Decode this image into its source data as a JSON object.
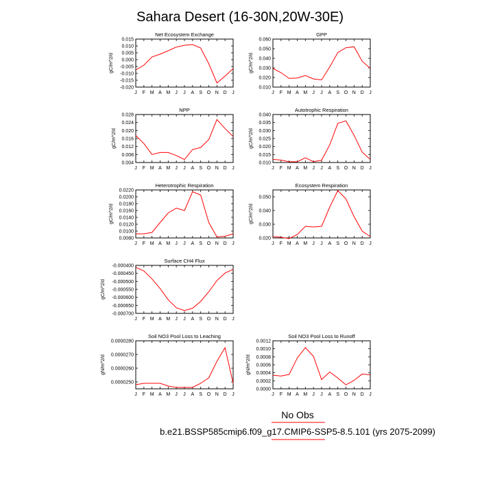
{
  "page": {
    "title": "Sahara Desert (16-30N,20W-30E)",
    "legend_label": "No Obs",
    "footer": "b.e21.BSSP585cmip6.f09_g17.CMIP6-SSP5-8.5.101 (yrs 2075-2099)",
    "line_color": "#ff0000"
  },
  "chart_data": [
    {
      "type": "line",
      "title": "Net Ecosystem Exchange",
      "ylabel": "gC/m^2/d",
      "categories": [
        "J",
        "F",
        "M",
        "A",
        "M",
        "J",
        "J",
        "A",
        "S",
        "O",
        "N",
        "D",
        "J"
      ],
      "values": [
        -0.0075,
        -0.004,
        0.002,
        0.004,
        0.0065,
        0.0092,
        0.0105,
        0.011,
        0.0085,
        -0.003,
        -0.017,
        -0.012,
        -0.0065
      ],
      "ylim": [
        -0.02,
        0.015
      ],
      "yticks": [
        "-0.020",
        "-0.015",
        "-0.010",
        "-0.005",
        "0.000",
        "0.005",
        "0.010",
        "0.015"
      ]
    },
    {
      "type": "line",
      "title": "GPP",
      "ylabel": "gC/m^2/d",
      "categories": [
        "J",
        "F",
        "M",
        "A",
        "M",
        "J",
        "J",
        "A",
        "S",
        "O",
        "N",
        "D",
        "J"
      ],
      "values": [
        0.0295,
        0.025,
        0.019,
        0.0195,
        0.022,
        0.0185,
        0.0175,
        0.031,
        0.046,
        0.051,
        0.052,
        0.037,
        0.0295
      ],
      "ylim": [
        0.01,
        0.06
      ],
      "yticks": [
        "0.010",
        "0.020",
        "0.030",
        "0.040",
        "0.050",
        "0.060"
      ]
    },
    {
      "type": "line",
      "title": "NPP",
      "ylabel": "gC/m^2/d",
      "categories": [
        "J",
        "F",
        "M",
        "A",
        "M",
        "J",
        "J",
        "A",
        "S",
        "O",
        "N",
        "D",
        "J"
      ],
      "values": [
        0.0175,
        0.0135,
        0.008,
        0.009,
        0.009,
        0.0075,
        0.0055,
        0.0105,
        0.0115,
        0.0155,
        0.0255,
        0.021,
        0.017
      ],
      "ylim": [
        0.004,
        0.028
      ],
      "yticks": [
        "0.004",
        "0.008",
        "0.012",
        "0.016",
        "0.020",
        "0.024",
        "0.028"
      ]
    },
    {
      "type": "line",
      "title": "Autotrophic Respiration",
      "ylabel": "gC/m^2/d",
      "categories": [
        "J",
        "F",
        "M",
        "A",
        "M",
        "J",
        "J",
        "A",
        "S",
        "O",
        "N",
        "D",
        "J"
      ],
      "values": [
        0.012,
        0.0115,
        0.0105,
        0.0105,
        0.013,
        0.0105,
        0.0115,
        0.021,
        0.0345,
        0.036,
        0.027,
        0.0165,
        0.012
      ],
      "ylim": [
        0.01,
        0.04
      ],
      "yticks": [
        "0.010",
        "0.015",
        "0.020",
        "0.025",
        "0.030",
        "0.035",
        "0.040"
      ]
    },
    {
      "type": "line",
      "title": "Heterotrophic Respiration",
      "ylabel": "gC/m^2/d",
      "categories": [
        "J",
        "F",
        "M",
        "A",
        "M",
        "J",
        "J",
        "A",
        "S",
        "O",
        "N",
        "D",
        "J"
      ],
      "values": [
        0.0092,
        0.0092,
        0.0096,
        0.0125,
        0.0153,
        0.0167,
        0.016,
        0.0215,
        0.0205,
        0.0125,
        0.0083,
        0.0085,
        0.0092
      ],
      "ylim": [
        0.008,
        0.022
      ],
      "yticks": [
        "0.0080",
        "0.0100",
        "0.0120",
        "0.0140",
        "0.0160",
        "0.0180",
        "0.0200",
        "0.0220"
      ]
    },
    {
      "type": "line",
      "title": "Ecosystem Respiration",
      "ylabel": "gC/m^2/d",
      "categories": [
        "J",
        "F",
        "M",
        "A",
        "M",
        "J",
        "J",
        "A",
        "S",
        "O",
        "N",
        "D",
        "J"
      ],
      "values": [
        0.021,
        0.0205,
        0.0195,
        0.0225,
        0.0285,
        0.028,
        0.0285,
        0.0425,
        0.0545,
        0.0485,
        0.0355,
        0.025,
        0.021
      ],
      "ylim": [
        0.02,
        0.055
      ],
      "yticks": [
        "0.020",
        "0.030",
        "0.040",
        "0.050"
      ]
    },
    {
      "type": "line",
      "title": "Surface CH4 Flux",
      "ylabel": "gC/m^2/d",
      "categories": [
        "J",
        "F",
        "M",
        "A",
        "M",
        "J",
        "J",
        "A",
        "S",
        "O",
        "N",
        "D",
        "J"
      ],
      "values": [
        -0.000412,
        -0.000435,
        -0.000485,
        -0.000545,
        -0.000615,
        -0.000665,
        -0.000682,
        -0.000668,
        -0.000625,
        -0.000565,
        -0.000495,
        -0.000448,
        -0.000425
      ],
      "ylim": [
        -0.0007,
        -0.0004
      ],
      "yticks": [
        "-0.000700",
        "-0.000650",
        "-0.000600",
        "-0.000550",
        "-0.000500",
        "-0.000450",
        "-0.000400"
      ]
    },
    {
      "type": "line",
      "title": "Soil NO3 Pool Loss to Leaching",
      "ylabel": "gN/m^2/d",
      "categories": [
        "J",
        "F",
        "M",
        "A",
        "M",
        "J",
        "J",
        "A",
        "S",
        "O",
        "N",
        "D",
        "J"
      ],
      "values": [
        2.48e-05,
        2.49e-05,
        2.49e-05,
        2.49e-05,
        2.47e-05,
        2.46e-05,
        2.46e-05,
        2.46e-05,
        2.49e-05,
        2.53e-05,
        2.65e-05,
        2.75e-05,
        2.49e-05
      ],
      "ylim": [
        2.45e-05,
        2.8e-05
      ],
      "yticks": [
        "0.0000250",
        "0.0000260",
        "0.0000270",
        "0.0000280"
      ]
    },
    {
      "type": "line",
      "title": "Soil NO3 Pool Loss to Runoff",
      "ylabel": "gN/m^2/d",
      "categories": [
        "J",
        "F",
        "M",
        "A",
        "M",
        "J",
        "J",
        "A",
        "S",
        "O",
        "N",
        "D",
        "J"
      ],
      "values": [
        0.00034,
        0.00032,
        0.00036,
        0.00077,
        0.00103,
        0.00081,
        0.00023,
        0.00042,
        0.00027,
        0.0001,
        0.00021,
        0.00037,
        0.00035
      ],
      "ylim": [
        0.0,
        0.0012
      ],
      "yticks": [
        "0.0000",
        "0.0002",
        "0.0004",
        "0.0006",
        "0.0008",
        "0.0010",
        "0.0012"
      ]
    }
  ]
}
